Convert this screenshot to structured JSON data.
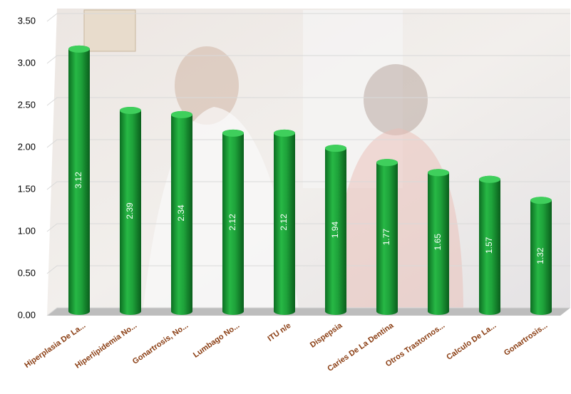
{
  "chart_data": {
    "type": "bar",
    "categories": [
      "Hiperplasia De La...",
      "Hiperlipidemia No...",
      "Gonartrosis, No...",
      "Lumbago No...",
      "ITU n/e",
      "Dispepsia",
      "Caries De La Dentina",
      "Otros Trastornos...",
      "Calculo De La...",
      "Gonartrosis..."
    ],
    "values": [
      3.12,
      2.39,
      2.34,
      2.12,
      2.12,
      1.94,
      1.77,
      1.65,
      1.57,
      1.32
    ],
    "color": "#1ea23a",
    "ylim": [
      0,
      3.5
    ],
    "yticks": [
      {
        "value": 0,
        "label": "0.00"
      },
      {
        "value": 0.5,
        "label": "0.50"
      },
      {
        "value": 1,
        "label": "1.00"
      },
      {
        "value": 1.5,
        "label": "1.50"
      },
      {
        "value": 2,
        "label": "2.00"
      },
      {
        "value": 2.5,
        "label": "2.50"
      },
      {
        "value": 3,
        "label": "3.00"
      },
      {
        "value": 3.5,
        "label": "3.50"
      }
    ],
    "grid": true
  }
}
